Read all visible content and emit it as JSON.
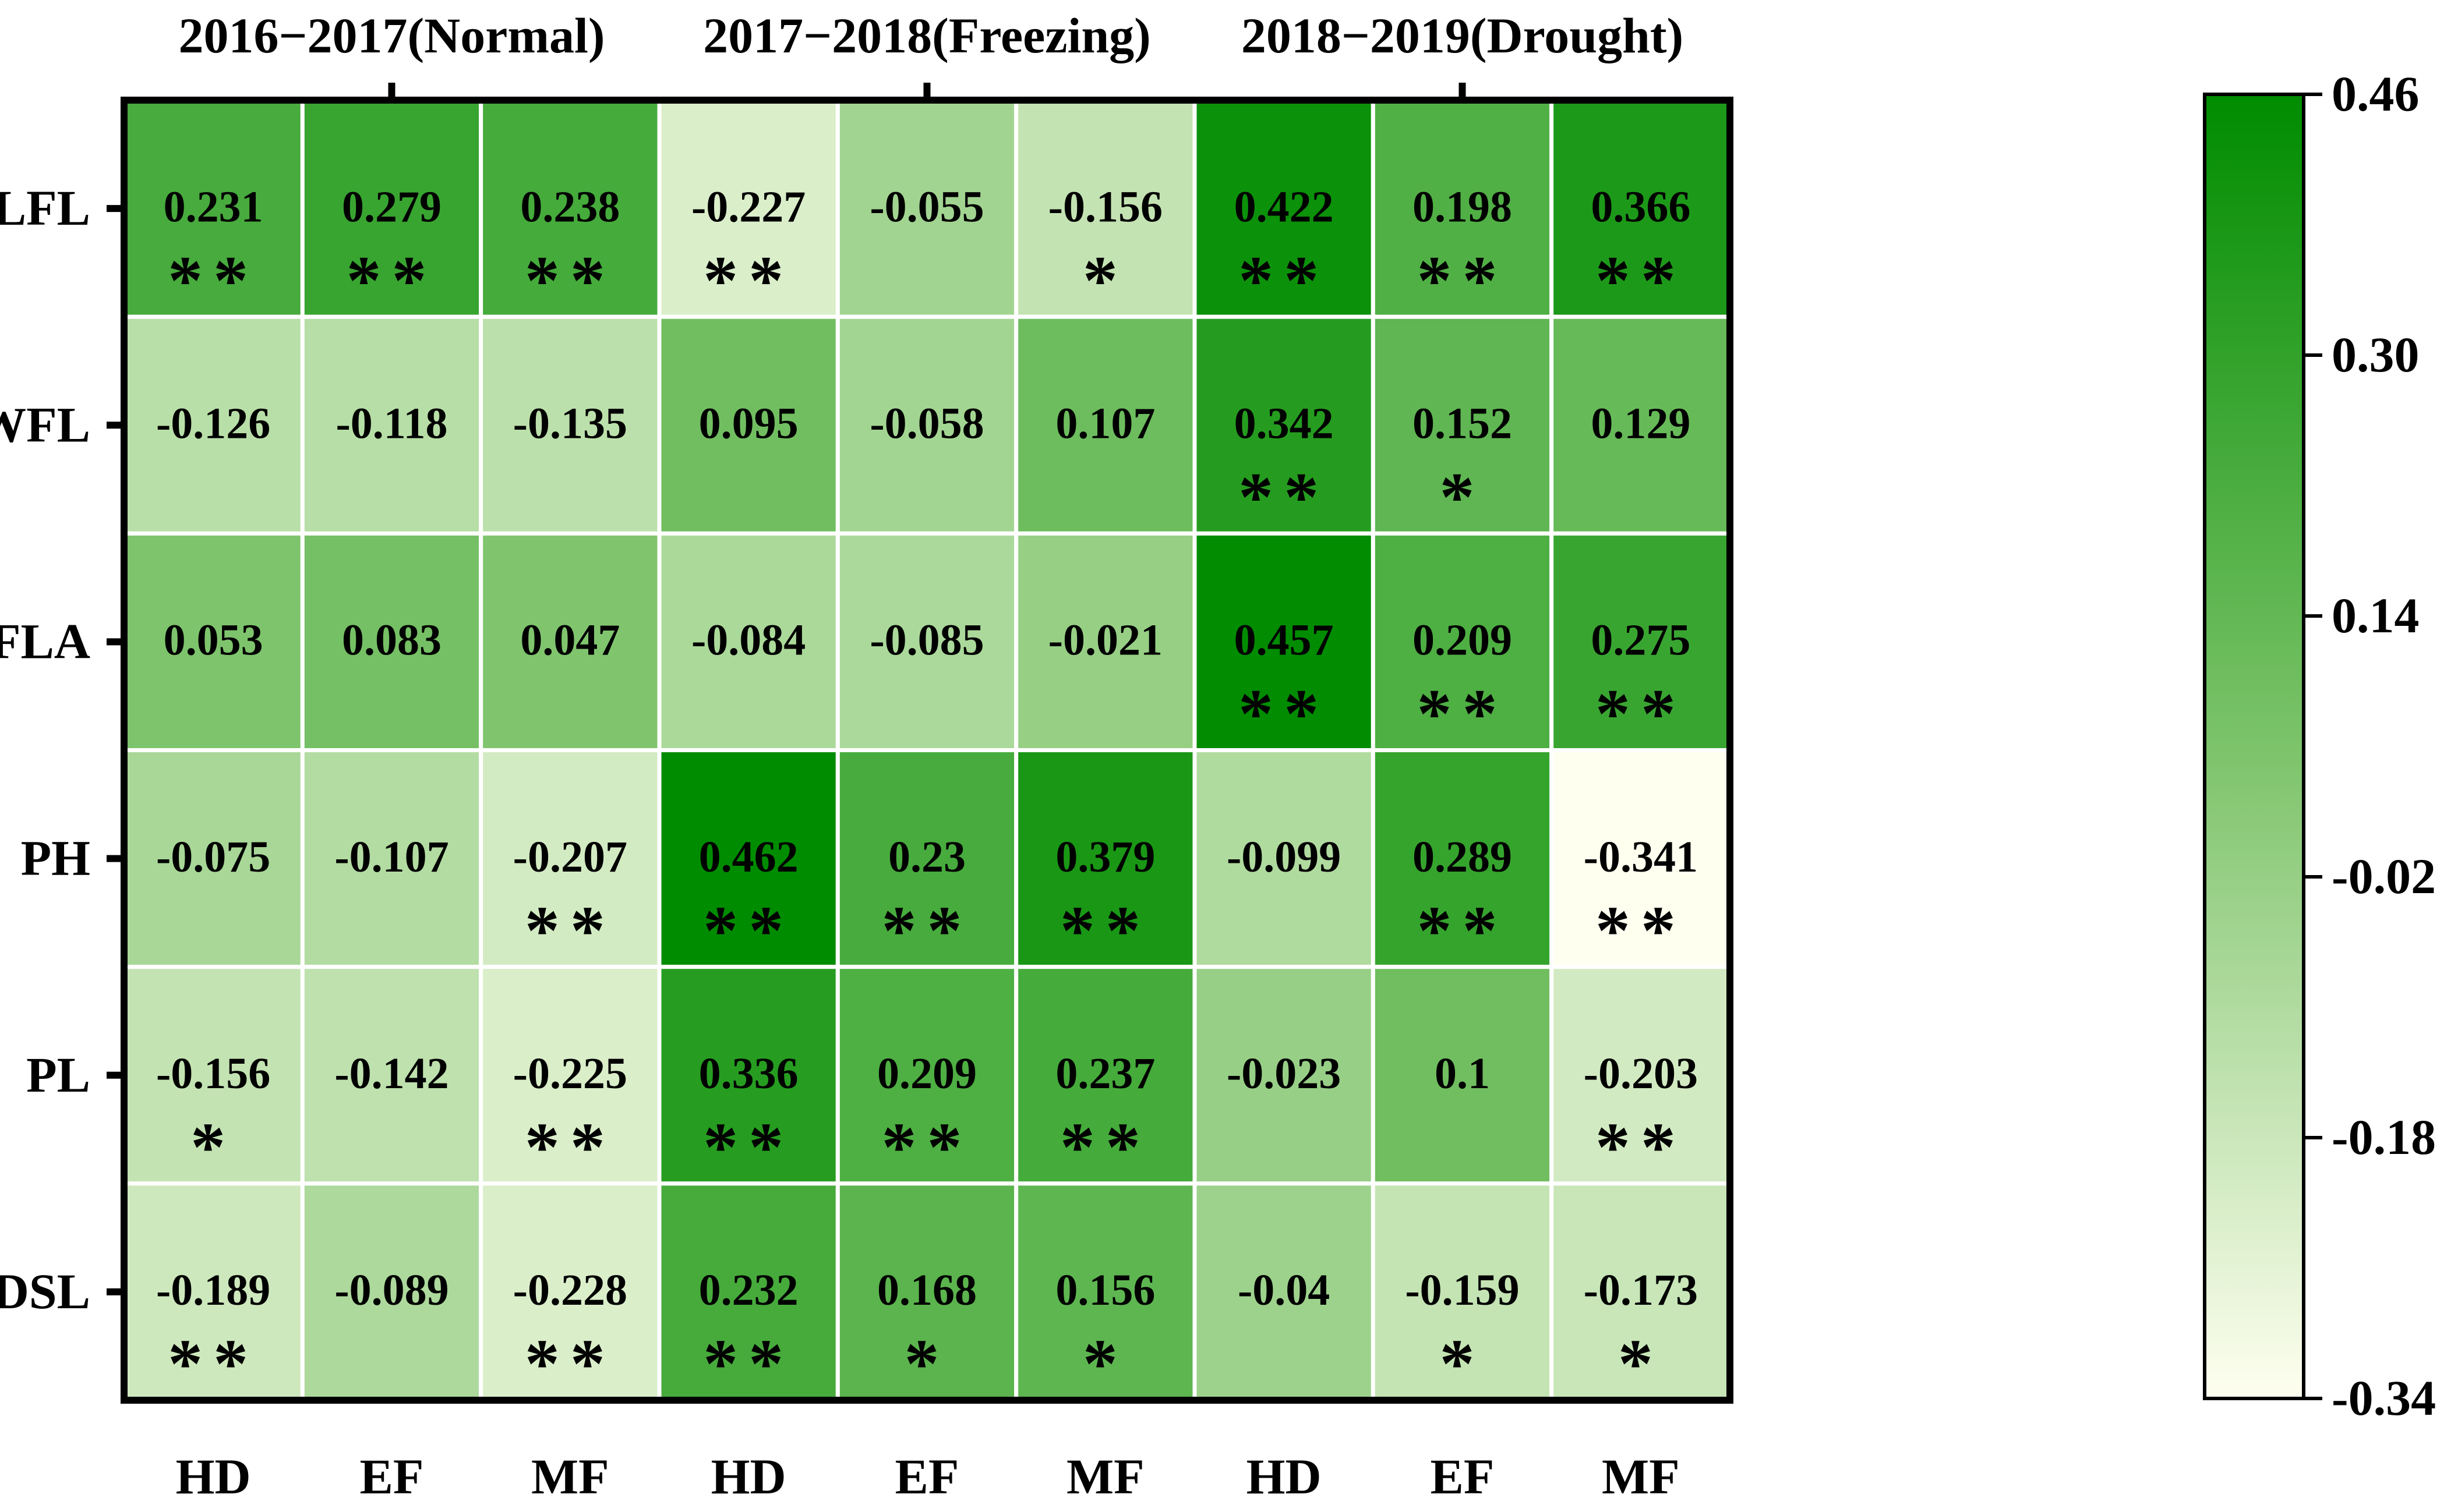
{
  "chart_data": {
    "type": "heatmap",
    "group_labels": [
      "2016−2017(Normal)",
      "2017−2018(Freezing)",
      "2018−2019(Drought)"
    ],
    "column_labels": [
      "HD",
      "EF",
      "MF",
      "HD",
      "EF",
      "MF",
      "HD",
      "EF",
      "MF"
    ],
    "row_labels": [
      "LFL",
      "WFL",
      "FLA",
      "PH",
      "PL",
      "DSL"
    ],
    "values": [
      [
        0.231,
        0.279,
        0.238,
        -0.227,
        -0.055,
        -0.156,
        0.422,
        0.198,
        0.366
      ],
      [
        -0.126,
        -0.118,
        -0.135,
        0.095,
        -0.058,
        0.107,
        0.342,
        0.152,
        0.129
      ],
      [
        0.053,
        0.083,
        0.047,
        -0.084,
        -0.085,
        -0.021,
        0.457,
        0.209,
        0.275
      ],
      [
        -0.075,
        -0.107,
        -0.207,
        0.462,
        0.23,
        0.379,
        -0.099,
        0.289,
        -0.341
      ],
      [
        -0.156,
        -0.142,
        -0.225,
        0.336,
        0.209,
        0.237,
        -0.023,
        0.1,
        -0.203
      ],
      [
        -0.189,
        -0.089,
        -0.228,
        0.232,
        0.168,
        0.156,
        -0.04,
        -0.159,
        -0.173
      ]
    ],
    "value_labels": [
      [
        "0.231",
        "0.279",
        "0.238",
        "-0.227",
        "-0.055",
        "-0.156",
        "0.422",
        "0.198",
        "0.366"
      ],
      [
        "-0.126",
        "-0.118",
        "-0.135",
        "0.095",
        "-0.058",
        "0.107",
        "0.342",
        "0.152",
        "0.129"
      ],
      [
        "0.053",
        "0.083",
        "0.047",
        "-0.084",
        "-0.085",
        "-0.021",
        "0.457",
        "0.209",
        "0.275"
      ],
      [
        "-0.075",
        "-0.107",
        "-0.207",
        "0.462",
        "0.23",
        "0.379",
        "-0.099",
        "0.289",
        "-0.341"
      ],
      [
        "-0.156",
        "-0.142",
        "-0.225",
        "0.336",
        "0.209",
        "0.237",
        "-0.023",
        "0.1",
        "-0.203"
      ],
      [
        "-0.189",
        "-0.089",
        "-0.228",
        "0.232",
        "0.168",
        "0.156",
        "-0.04",
        "-0.159",
        "-0.173"
      ]
    ],
    "significance": [
      [
        "**",
        "**",
        "**",
        "**",
        "",
        "*",
        "**",
        "**",
        "**"
      ],
      [
        "",
        "",
        "",
        "",
        "",
        "",
        "**",
        "*",
        ""
      ],
      [
        "",
        "",
        "",
        "",
        "",
        "",
        "**",
        "**",
        "**"
      ],
      [
        "",
        "",
        "**",
        "**",
        "**",
        "**",
        "",
        "**",
        "**"
      ],
      [
        "*",
        "",
        "**",
        "**",
        "**",
        "**",
        "",
        "",
        "**"
      ],
      [
        "**",
        "",
        "**",
        "**",
        "*",
        "*",
        "",
        "*",
        "*"
      ]
    ],
    "colorbar": {
      "range": [
        -0.34,
        0.46
      ],
      "tick_labels": [
        "0.46",
        "0.30",
        "0.14",
        "-0.02",
        "-0.18",
        "-0.34"
      ],
      "tick_values": [
        0.46,
        0.3,
        0.14,
        -0.02,
        -0.18,
        -0.34
      ],
      "low_color": "#fffff0",
      "mid_color": "#7cc36a",
      "high_color": "#008c00"
    }
  }
}
